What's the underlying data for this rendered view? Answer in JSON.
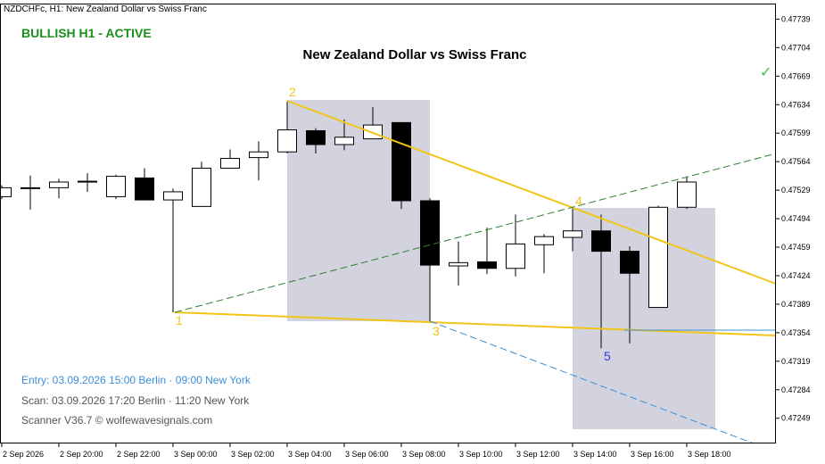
{
  "chart_data": {
    "type": "candlestick",
    "symbol_label": "NZDCHFc, H1:  New Zealand Dollar vs Swiss Franc",
    "status": "BULLISH H1 - ACTIVE",
    "title": "New Zealand Dollar vs Swiss Franc",
    "check": "✓",
    "wave_labels": [
      "1",
      "2",
      "3",
      "4",
      "5"
    ],
    "info": [
      "Entry: 03.09.2026  15:00 Berlin · 09:00 New York",
      "Scan:  03.09.2026  17:20 Berlin · 11:20 New York",
      "Scanner V36.7  © wolfewavesignals.com"
    ],
    "categories": [
      "2 Sep 2026",
      null,
      "2 Sep 20:00",
      null,
      "2 Sep 22:00",
      null,
      "3 Sep 00:00",
      null,
      "3 Sep 02:00",
      null,
      "3 Sep 04:00",
      null,
      "3 Sep 06:00",
      null,
      "3 Sep 08:00",
      null,
      "3 Sep 10:00",
      null,
      "3 Sep 12:00",
      null,
      "3 Sep 14:00",
      null,
      "3 Sep 16:00",
      null,
      "3 Sep 18:00"
    ],
    "open": [
      0.47521,
      0.47531,
      0.47532,
      0.47539,
      0.47521,
      0.47544,
      0.47517,
      0.47509,
      0.47556,
      0.47569,
      0.47576,
      0.47602,
      0.47585,
      0.47592,
      0.47612,
      0.47516,
      0.47436,
      0.47441,
      0.47433,
      0.47462,
      0.47471,
      0.47479,
      0.47454,
      0.47385,
      0.47508
    ],
    "high": [
      0.47535,
      0.47547,
      0.47543,
      0.4755,
      0.47548,
      0.47556,
      0.47531,
      0.47564,
      0.47579,
      0.47589,
      0.47638,
      0.47605,
      0.47616,
      0.47631,
      0.47612,
      0.47519,
      0.47466,
      0.47483,
      0.47499,
      0.47475,
      0.47508,
      0.47499,
      0.4746,
      0.4751,
      0.47546
    ],
    "low": [
      0.47518,
      0.47505,
      0.47519,
      0.47527,
      0.47518,
      0.47517,
      0.47379,
      0.47509,
      0.47556,
      0.47541,
      0.47574,
      0.47574,
      0.47578,
      0.47592,
      0.47506,
      0.47368,
      0.47412,
      0.47426,
      0.47423,
      0.47427,
      0.47454,
      0.47335,
      0.47341,
      0.47385,
      0.47506
    ],
    "close": [
      0.47532,
      0.47532,
      0.47539,
      0.4754,
      0.47546,
      0.47517,
      0.47527,
      0.47556,
      0.47568,
      0.47576,
      0.47603,
      0.47585,
      0.47594,
      0.47609,
      0.47516,
      0.47437,
      0.4744,
      0.47433,
      0.47463,
      0.47472,
      0.47479,
      0.47454,
      0.47427,
      0.47508,
      0.47539
    ],
    "ylim": [
      0.47218,
      0.47757
    ],
    "yticks": [
      0.47739,
      0.47704,
      0.47669,
      0.47634,
      0.47599,
      0.47564,
      0.47529,
      0.47494,
      0.47459,
      0.47424,
      0.47389,
      0.47354,
      0.47319,
      0.47284,
      0.47249
    ]
  }
}
